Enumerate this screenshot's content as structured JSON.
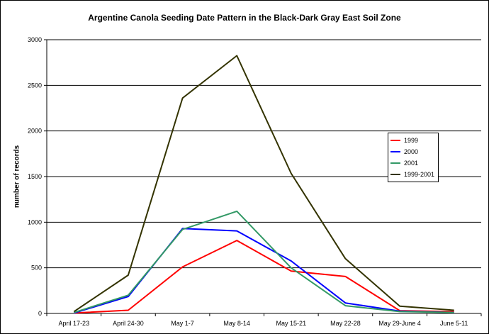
{
  "chart_data": {
    "type": "line",
    "title": "Argentine Canola Seeding Date Pattern in the Black-Dark Gray East Soil Zone",
    "xlabel": "",
    "ylabel": "number of records",
    "ylim": [
      0,
      3000
    ],
    "yticks": [
      0,
      500,
      1000,
      1500,
      2000,
      2500,
      3000
    ],
    "grid": true,
    "legend_position": "right",
    "categories": [
      "April 17-23",
      "April 24-30",
      "May 1-7",
      "May 8-14",
      "May 15-21",
      "May 22-28",
      "May 29-June 4",
      "June 5-11"
    ],
    "series": [
      {
        "name": "1999",
        "color": "#ff0000",
        "values": [
          5,
          35,
          510,
          800,
          465,
          405,
          30,
          20
        ]
      },
      {
        "name": "2000",
        "color": "#0000ff",
        "values": [
          5,
          185,
          930,
          905,
          575,
          115,
          25,
          10
        ]
      },
      {
        "name": "2001",
        "color": "#339966",
        "values": [
          10,
          200,
          920,
          1120,
          500,
          85,
          20,
          10
        ]
      },
      {
        "name": "1999-2001",
        "color": "#333300",
        "values": [
          20,
          420,
          2360,
          2825,
          1535,
          600,
          80,
          35
        ]
      }
    ]
  }
}
